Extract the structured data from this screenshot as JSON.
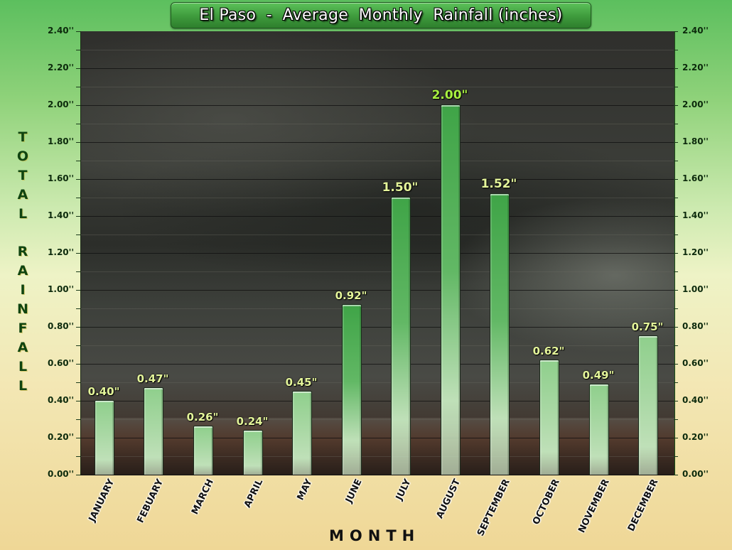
{
  "chart_data": {
    "type": "bar",
    "title": "El Paso  -  Average  Monthly  Rainfall (inches)",
    "xlabel": "MONTH",
    "ylabel": "TOTAL RAINFALL",
    "categories": [
      "JANUARY",
      "FEBUARY",
      "MARCH",
      "APRIL",
      "MAY",
      "JUNE",
      "JULY",
      "AUGUST",
      "SEPTEMBER",
      "OCTOBER",
      "NOVEMBER",
      "DECEMBER"
    ],
    "values": [
      0.4,
      0.47,
      0.26,
      0.24,
      0.45,
      0.92,
      1.5,
      2.0,
      1.52,
      0.62,
      0.49,
      0.75
    ],
    "value_labels": [
      "0.40\"",
      "0.47\"",
      "0.26\"",
      "0.24\"",
      "0.45\"",
      "0.92\"",
      "1.50\"",
      "2.00\"",
      "1.52\"",
      "0.62\"",
      "0.49\"",
      "0.75\""
    ],
    "ylim": [
      0,
      2.4
    ],
    "yticks": [
      "0.00''",
      "0.20''",
      "0.40''",
      "0.60''",
      "0.80''",
      "1.00''",
      "1.20''",
      "1.40''",
      "1.60''",
      "1.80''",
      "2.00''",
      "2.20''",
      "2.40''"
    ],
    "ytick_values": [
      0,
      0.2,
      0.4,
      0.6,
      0.8,
      1.0,
      1.2,
      1.4,
      1.6,
      1.8,
      2.0,
      2.2,
      2.4
    ],
    "grid": true,
    "secondary_y_axis": true,
    "legend": null,
    "background": "storm cloud photograph"
  },
  "colors": {
    "bar_top_light": "#b8dcb0",
    "bar_top_dark": "#3fa447",
    "label_small": "#e4f59a",
    "label_large": "#a8f040",
    "axis_text": "#0c2a0c",
    "ylabel": "#0f4410",
    "title_bg": "#3e9a3c"
  }
}
